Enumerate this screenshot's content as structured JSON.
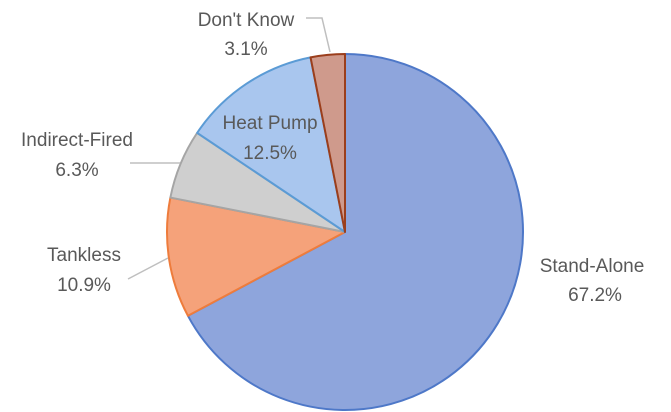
{
  "chart_data": {
    "type": "pie",
    "title": "",
    "legend": "none",
    "slices": [
      {
        "label": "Stand-Alone",
        "percent_label": "67.2%",
        "value": 67.2,
        "color": "#8ea5dc",
        "stroke": "#4e78c8"
      },
      {
        "label": "Tankless",
        "percent_label": "10.9%",
        "value": 10.9,
        "color": "#f5a27a",
        "stroke": "#ee7c3c"
      },
      {
        "label": "Indirect-Fired",
        "percent_label": "6.3%",
        "value": 6.3,
        "color": "#cfcfcf",
        "stroke": "#a5a5a5"
      },
      {
        "label": "Heat Pump",
        "percent_label": "12.5%",
        "value": 12.5,
        "color": "#a9c6ee",
        "stroke": "#5b9bd5"
      },
      {
        "label": "Don't Know",
        "percent_label": "3.1%",
        "value": 3.1,
        "color": "#cf9a8c",
        "stroke": "#9b3e1c"
      }
    ]
  }
}
